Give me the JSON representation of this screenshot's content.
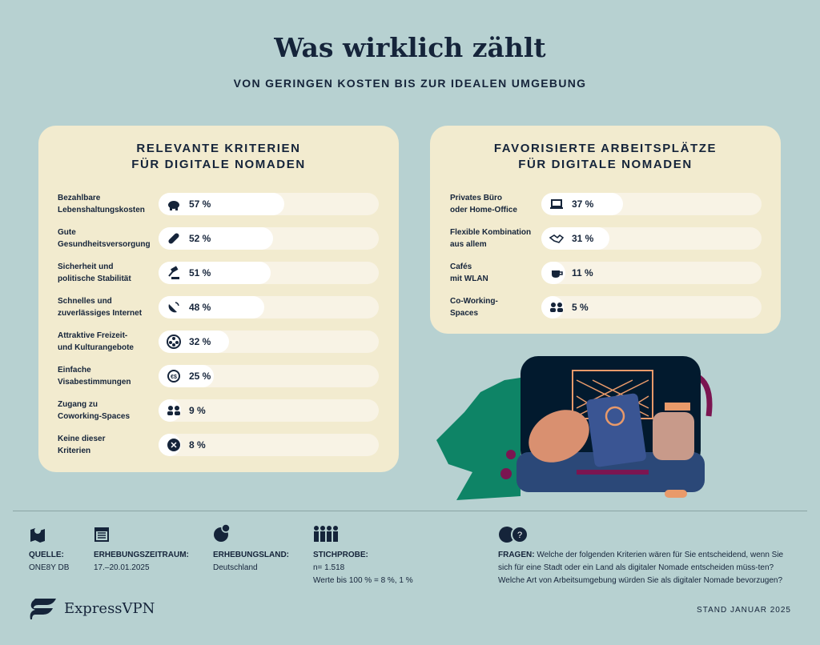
{
  "title": "Was wirklich zählt",
  "subtitle": "VON GERINGEN KOSTEN BIS ZUR IDEALEN UMGEBUNG",
  "colors": {
    "background": "#b7d1d1",
    "panel": "#f2ebcf",
    "bar_fill": "#ffffff",
    "bar_track": "#f8f3e5",
    "text": "#15243a"
  },
  "chart_data": [
    {
      "type": "bar",
      "orientation": "horizontal",
      "title": "RELEVANTE KRITERIEN FÜR DIGITALE NOMADEN",
      "title_lines": [
        "RELEVANTE KRITERIEN",
        "FÜR DIGITALE NOMADEN"
      ],
      "xlim": [
        0,
        100
      ],
      "unit": "%",
      "items": [
        {
          "label": [
            "Bezahlbare",
            "Lebenshaltungskosten"
          ],
          "value": 57,
          "text": "57 %",
          "icon": "piggy-bank-icon"
        },
        {
          "label": [
            "Gute",
            "Gesundheitsversorgung"
          ],
          "value": 52,
          "text": "52 %",
          "icon": "pill-icon"
        },
        {
          "label": [
            "Sicherheit und",
            "politische Stabilität"
          ],
          "value": 51,
          "text": "51 %",
          "icon": "gavel-icon"
        },
        {
          "label": [
            "Schnelles und",
            "zuverlässiges Internet"
          ],
          "value": 48,
          "text": "48 %",
          "icon": "satellite-dish-icon"
        },
        {
          "label": [
            "Attraktive Freizeit-",
            "und Kulturangebote"
          ],
          "value": 32,
          "text": "32 %",
          "icon": "film-reel-icon"
        },
        {
          "label": [
            "Einfache",
            "Visabestimmungen"
          ],
          "value": 25,
          "text": "25 %",
          "icon": "currency-exchange-icon"
        },
        {
          "label": [
            "Zugang zu",
            "Coworking-Spaces"
          ],
          "value": 9,
          "text": "9 %",
          "icon": "people-icon"
        },
        {
          "label": [
            "Keine dieser",
            "Kriterien"
          ],
          "value": 8,
          "text": "8 %",
          "icon": "x-circle-icon"
        }
      ]
    },
    {
      "type": "bar",
      "orientation": "horizontal",
      "title": "FAVORISIERTE ARBEITSPLÄTZE FÜR DIGITALE NOMADEN",
      "title_lines": [
        "FAVORISIERTE ARBEITSPLÄTZE",
        "FÜR DIGITALE NOMADEN"
      ],
      "xlim": [
        0,
        100
      ],
      "unit": "%",
      "items": [
        {
          "label": [
            "Privates Büro",
            "oder Home-Office"
          ],
          "value": 37,
          "text": "37 %",
          "icon": "laptop-icon"
        },
        {
          "label": [
            "Flexible Kombination",
            "aus allem"
          ],
          "value": 31,
          "text": "31 %",
          "icon": "handshake-icon"
        },
        {
          "label": [
            "Cafés",
            "mit WLAN"
          ],
          "value": 11,
          "text": "11 %",
          "icon": "coffee-cup-icon"
        },
        {
          "label": [
            "Co-Working-",
            "Spaces"
          ],
          "value": 5,
          "text": "5 %",
          "icon": "people-icon"
        }
      ]
    }
  ],
  "footer": {
    "source": {
      "label": "QUELLE:",
      "value": "ONE8Y DB"
    },
    "period": {
      "label": "ERHEBUNGSZEITRAUM:",
      "value": "17.–20.01.2025"
    },
    "country": {
      "label": "ERHEBUNGSLAND:",
      "value": "Deutschland"
    },
    "sample": {
      "label": "STICHPROBE:",
      "value": "n= 1.518",
      "note": "Werte bis 100 % = 8 %, 1 %"
    },
    "questions": {
      "label": "FRAGEN:",
      "text": " Welche der folgenden Kriterien wären für Sie entscheidend, wenn Sie sich für eine Stadt oder ein Land als digitaler Nomade entscheiden müss-ten? Welche Art von Arbeitsumgebung würden Sie als digitaler Nomade bevorzugen?"
    },
    "brand": "ExpressVPN",
    "stand": "STAND JANUAR 2025"
  }
}
